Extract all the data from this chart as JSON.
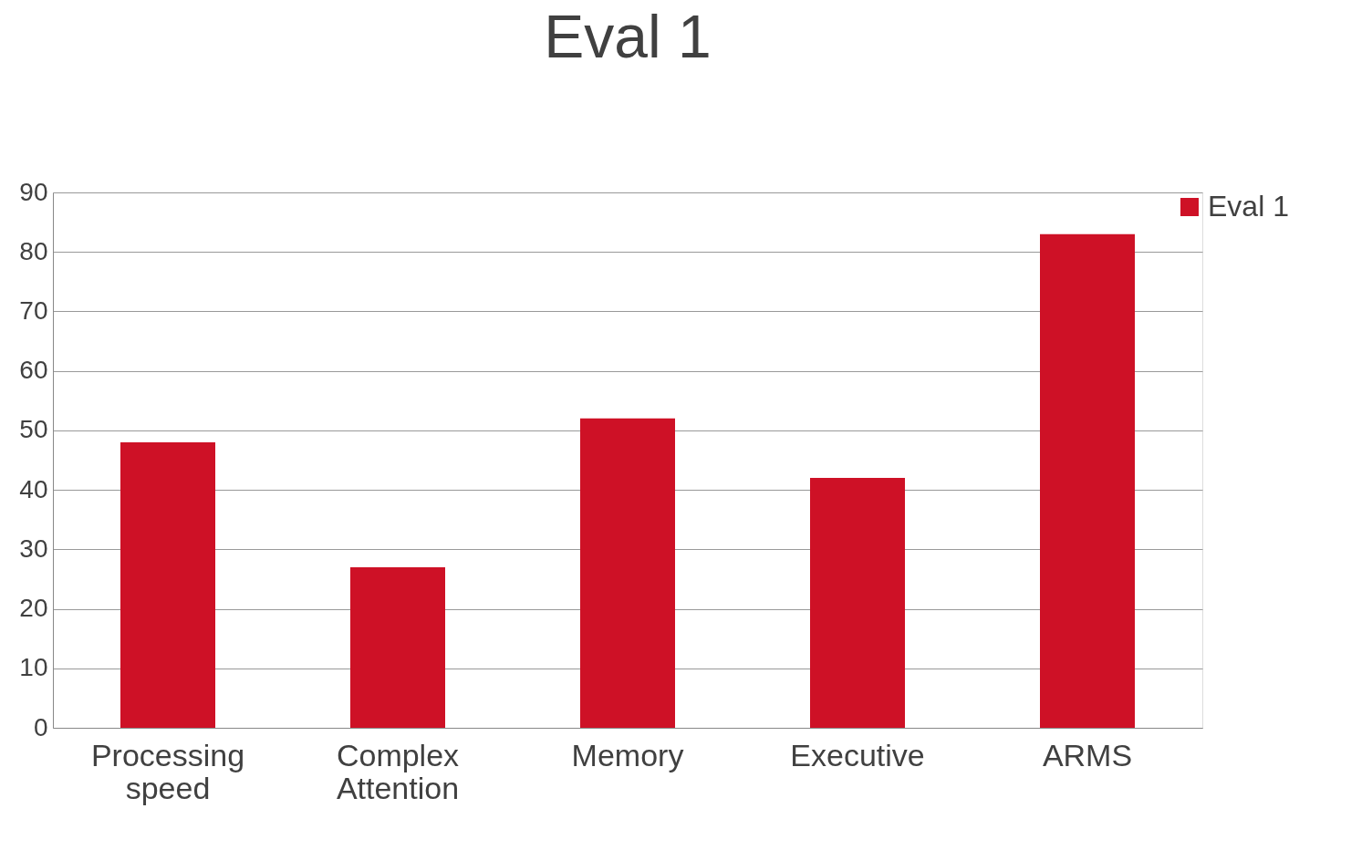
{
  "chart_data": {
    "type": "bar",
    "title": "Eval 1",
    "categories": [
      "Processing speed",
      "Complex Attention",
      "Memory",
      "Executive",
      "ARMS"
    ],
    "series": [
      {
        "name": "Eval 1",
        "color": "#ce1126",
        "values": [
          48,
          27,
          52,
          42,
          83
        ]
      }
    ],
    "ylim": [
      0,
      90
    ],
    "yticks": [
      0,
      10,
      20,
      30,
      40,
      50,
      60,
      70,
      80,
      90
    ],
    "grid": "y",
    "legend": "right"
  }
}
